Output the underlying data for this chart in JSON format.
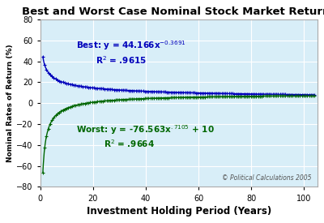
{
  "title": "Best and Worst Case Nominal Stock Market Returns",
  "xlabel": "Investment Holding Period (Years)",
  "ylabel": "Nominal Rates of Return (%)",
  "xlim": [
    0,
    105
  ],
  "ylim": [
    -80,
    80
  ],
  "yticks": [
    -80,
    -60,
    -40,
    -20,
    0,
    20,
    40,
    60,
    80
  ],
  "xticks": [
    0,
    20,
    40,
    60,
    80,
    100
  ],
  "fig_bg_color": "#ffffff",
  "plot_bg_color": "#d8eef8",
  "best_color": "#0000bb",
  "worst_color": "#006600",
  "best_a": 44.166,
  "best_b": -0.3691,
  "worst_a": -76.563,
  "worst_b": 0.7105,
  "worst_c": 10,
  "x_start": 1,
  "x_end": 104,
  "title_fontsize": 9.5,
  "axis_label_fontsize": 8.5,
  "tick_fontsize": 7,
  "annot_fontsize": 7.5,
  "copyright": "© Political Calculations 2005",
  "grid_color": "#ffffff",
  "spine_color": "#aaaaaa"
}
